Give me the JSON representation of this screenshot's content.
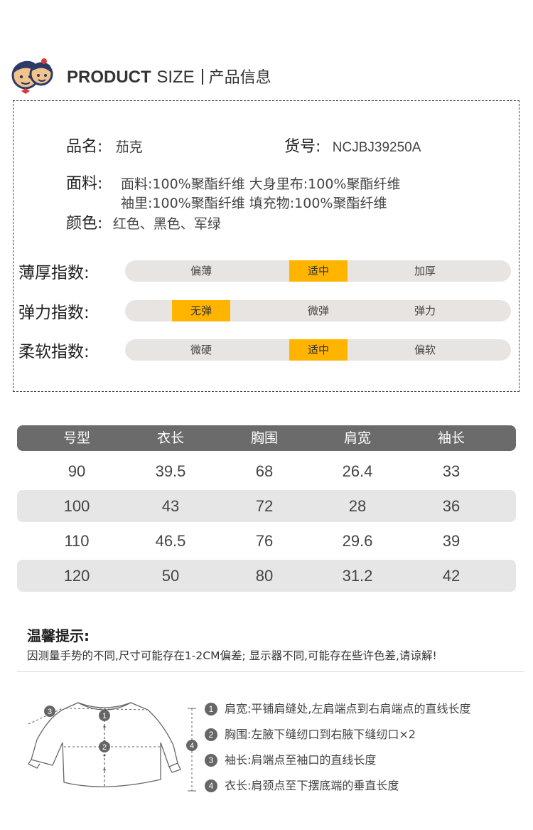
{
  "header": {
    "title_en_bold": "PRODUCT",
    "title_en_rest": "SIZE",
    "title_cn": "产品信息"
  },
  "info": {
    "name_label": "品名:",
    "name_value": "茄克",
    "item_label": "货号:",
    "item_value": "NCJBJ39250A",
    "fabric_label": "面料:",
    "fabric_line1": "面料:100%聚酯纤维  大身里布:100%聚酯纤维",
    "fabric_line2": "袖里:100%聚酯纤维  填充物:100%聚酯纤维",
    "color_label": "颜色:",
    "color_value": "红色、黑色、军绿"
  },
  "indices": [
    {
      "label": "薄厚指数:",
      "options": [
        "偏薄",
        "适中",
        "加厚"
      ],
      "active": 1
    },
    {
      "label": "弹力指数:",
      "options": [
        "无弹",
        "微弹",
        "弹力"
      ],
      "active": 0
    },
    {
      "label": "柔软指数:",
      "options": [
        "微硬",
        "适中",
        "偏软"
      ],
      "active": 1
    }
  ],
  "size_table": {
    "headers": [
      "号型",
      "衣长",
      "胸围",
      "肩宽",
      "袖长"
    ],
    "rows": [
      [
        "90",
        "39.5",
        "68",
        "26.4",
        "33"
      ],
      [
        "100",
        "43",
        "72",
        "28",
        "36"
      ],
      [
        "110",
        "46.5",
        "76",
        "29.6",
        "39"
      ],
      [
        "120",
        "50",
        "80",
        "31.2",
        "42"
      ]
    ]
  },
  "tips": {
    "title": "温馨提示:",
    "text": "因测量手势的不同,尺寸可能存在1-2CM偏差; 显示器不同,可能存在些许色差,请谅解!"
  },
  "measure_guide": [
    {
      "num": "1",
      "text": "肩宽:平铺肩缝处,左肩端点到右肩端点的直线长度"
    },
    {
      "num": "2",
      "text": "胸围:左腋下缝纫口到右腋下缝纫口×2"
    },
    {
      "num": "3",
      "text": "袖长:肩端点至袖口的直线长度"
    },
    {
      "num": "4",
      "text": "衣长:肩颈点至下摆底端的垂直长度"
    }
  ],
  "colors": {
    "accent": "#ffb400",
    "track": "#e8e4e1",
    "table_head": "#6b6b6b",
    "table_shade": "#e6e6e6"
  }
}
